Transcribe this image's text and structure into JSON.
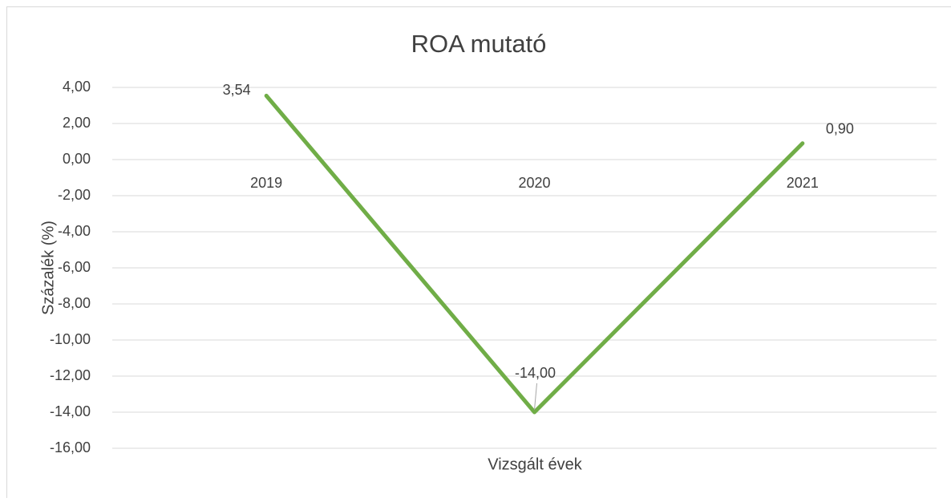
{
  "chart_data": {
    "type": "line",
    "title": "ROA mutató",
    "x_label": "Vizsgált évek",
    "y_label": "Százalék (%)",
    "categories": [
      "2019",
      "2020",
      "2021"
    ],
    "values": [
      3.54,
      -14.0,
      0.9
    ],
    "value_labels": [
      "3,54",
      "-14,00",
      "0,90"
    ],
    "color": "#70ad47",
    "ylim": [
      -16,
      4
    ],
    "yticks": [
      {
        "value": 4,
        "label": "4,00"
      },
      {
        "value": 2,
        "label": "2,00"
      },
      {
        "value": 0,
        "label": "0,00"
      },
      {
        "value": -2,
        "label": "-2,00"
      },
      {
        "value": -4,
        "label": "-4,00"
      },
      {
        "value": -6,
        "label": "-6,00"
      },
      {
        "value": -8,
        "label": "-8,00"
      },
      {
        "value": -10,
        "label": "-10,00"
      },
      {
        "value": -12,
        "label": "-12,00"
      },
      {
        "value": -14,
        "label": "-14,00"
      },
      {
        "value": -16,
        "label": "-16,00"
      }
    ],
    "grid": true
  }
}
